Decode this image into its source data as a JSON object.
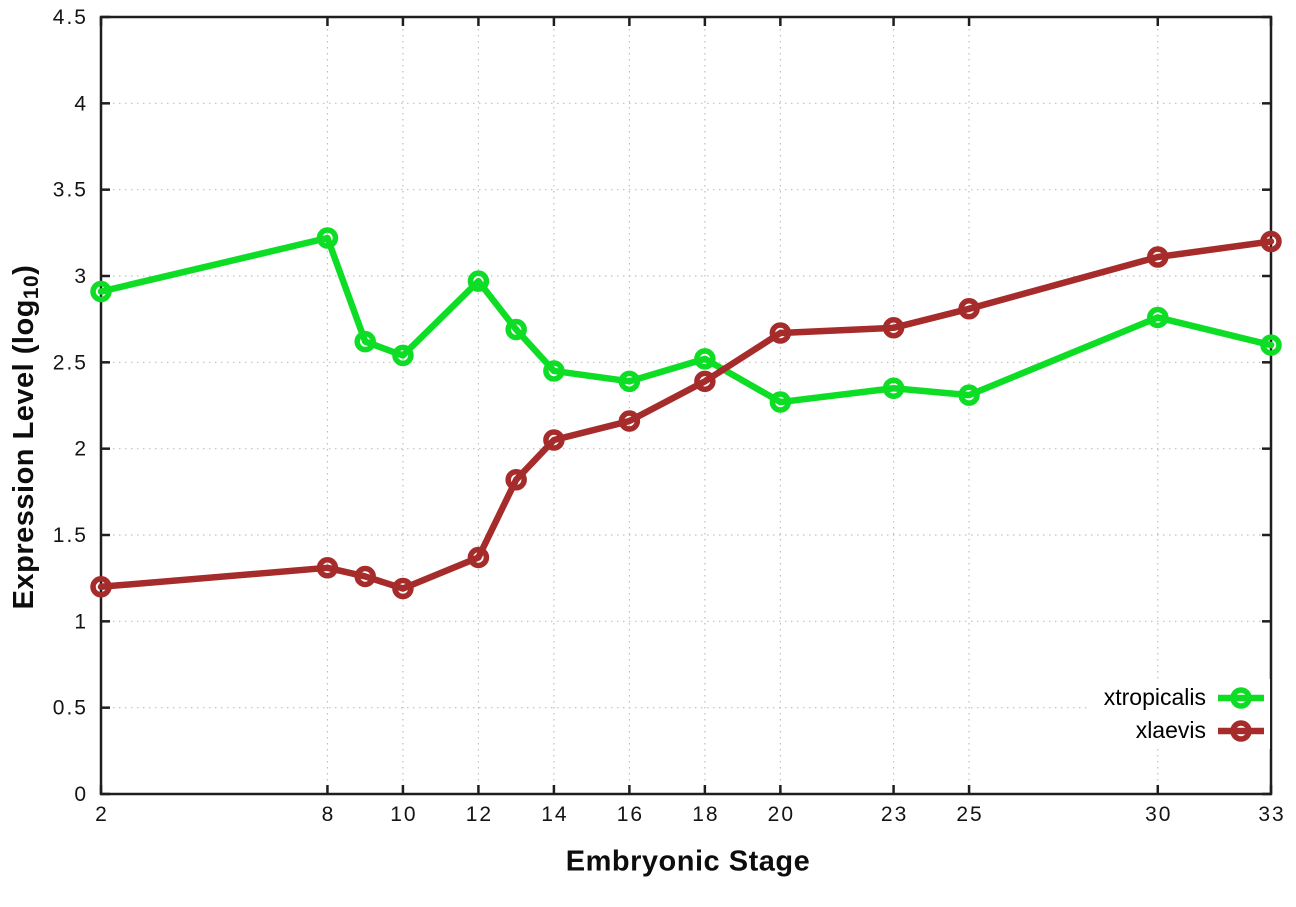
{
  "page": {
    "background": "#ffffff"
  },
  "labels": {
    "xlabel": "Embryonic Stage",
    "ylabel_prefix": "Expression Level (log",
    "ylabel_subscript": "10",
    "ylabel_suffix": ")"
  },
  "chart_data": {
    "type": "line",
    "title": "",
    "xlabel": "Embryonic Stage",
    "ylabel": "Expression Level (log10)",
    "xlim": [
      2,
      33
    ],
    "ylim": [
      0,
      4.5
    ],
    "x_ticks": [
      2,
      8,
      10,
      12,
      14,
      16,
      18,
      20,
      23,
      25,
      30,
      33
    ],
    "y_ticks": [
      0,
      0.5,
      1,
      1.5,
      2,
      2.5,
      3,
      3.5,
      4,
      4.5
    ],
    "grid": true,
    "grid_style": "dotted",
    "legend_position": "bottom-right",
    "marker": "open-circle",
    "x": [
      2,
      8,
      9,
      10,
      12,
      13,
      14,
      16,
      18,
      20,
      23,
      25,
      30,
      33
    ],
    "series": [
      {
        "name": "xtropicalis",
        "color": "#0edd26",
        "values": [
          2.91,
          3.22,
          2.62,
          2.54,
          2.97,
          2.69,
          2.45,
          2.39,
          2.52,
          2.27,
          2.35,
          2.31,
          2.76,
          2.6
        ]
      },
      {
        "name": "xlaevis",
        "color": "#a62b2b",
        "values": [
          1.2,
          1.31,
          1.26,
          1.19,
          1.37,
          1.82,
          2.05,
          2.16,
          2.39,
          2.67,
          2.7,
          2.81,
          3.11,
          3.2
        ]
      }
    ],
    "colors": {
      "grid": "#bfbfbf",
      "axis": "#1e1e1e",
      "tick_text": "#141414"
    }
  }
}
